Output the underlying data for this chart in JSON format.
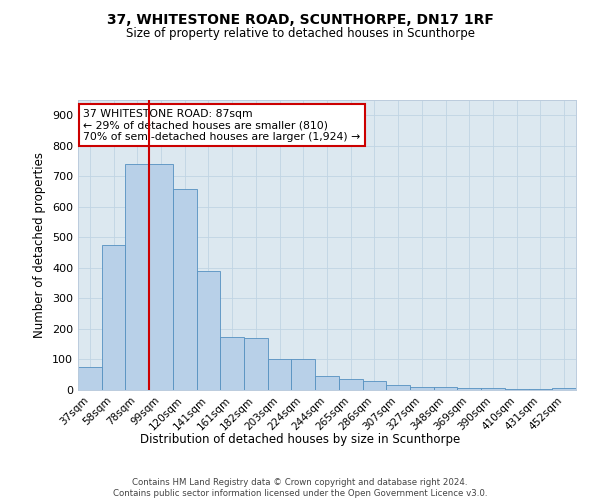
{
  "title1": "37, WHITESTONE ROAD, SCUNTHORPE, DN17 1RF",
  "title2": "Size of property relative to detached houses in Scunthorpe",
  "xlabel": "Distribution of detached houses by size in Scunthorpe",
  "ylabel": "Number of detached properties",
  "categories": [
    "37sqm",
    "58sqm",
    "78sqm",
    "99sqm",
    "120sqm",
    "141sqm",
    "161sqm",
    "182sqm",
    "203sqm",
    "224sqm",
    "244sqm",
    "265sqm",
    "286sqm",
    "307sqm",
    "327sqm",
    "348sqm",
    "369sqm",
    "390sqm",
    "410sqm",
    "431sqm",
    "452sqm"
  ],
  "values": [
    75,
    475,
    740,
    740,
    660,
    390,
    175,
    170,
    100,
    100,
    45,
    35,
    30,
    15,
    10,
    10,
    7,
    5,
    3,
    2,
    8
  ],
  "bar_color": "#b8d0e8",
  "bar_edge_color": "#5590c0",
  "vline_x": 2.5,
  "vline_color": "#cc0000",
  "annotation_text": "37 WHITESTONE ROAD: 87sqm\n← 29% of detached houses are smaller (810)\n70% of semi-detached houses are larger (1,924) →",
  "annotation_box_color": "#ffffff",
  "annotation_box_edge": "#cc0000",
  "ylim": [
    0,
    950
  ],
  "yticks": [
    0,
    100,
    200,
    300,
    400,
    500,
    600,
    700,
    800,
    900
  ],
  "footer": "Contains HM Land Registry data © Crown copyright and database right 2024.\nContains public sector information licensed under the Open Government Licence v3.0.",
  "plot_bg_color": "#dce8f0"
}
